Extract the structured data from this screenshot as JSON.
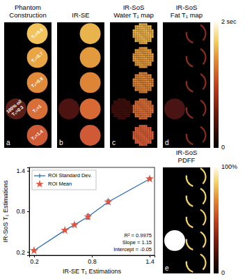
{
  "figure": {
    "panels": [
      {
        "letter": "a",
        "title": [
          "Phantom",
          "Construction"
        ],
        "vial_colors": [
          "#f2c35a",
          "#e9a444",
          "#e18a3a",
          "#d86e38",
          "#d05c36",
          "#5c1f18"
        ],
        "vial_labels": [
          "T₁=0.6",
          "T₁=0.7",
          "T₁=0.8",
          "T₁=1",
          "T₁=1.4"
        ],
        "oil_label": [
          "100% oil",
          "T₁=0.3"
        ]
      },
      {
        "letter": "b",
        "title": [
          "IR-SE"
        ],
        "vial_colors": [
          "#e9b44c",
          "#e39a3c",
          "#de8436",
          "#d76a34",
          "#cf5a35",
          "#4d1310"
        ]
      },
      {
        "letter": "c",
        "title": [
          "IR-SoS",
          "Water T₁ map"
        ],
        "vial_colors": [
          "#e6ae4a",
          "#e0973c",
          "#da8237",
          "#d46a35",
          "#cc5934",
          "#3a0e0b"
        ]
      },
      {
        "letter": "d",
        "title": [
          "IR-SoS",
          "Fat T₁ map"
        ],
        "vial_colors": [
          "#8a2c1a",
          "#8a2c1a",
          "#8a2c1a",
          "#8a2c1a",
          "#8a2c1a",
          "#4a1414"
        ]
      },
      {
        "letter": "e",
        "title": [
          "IR-SoS",
          "PDFF"
        ],
        "vial_colors": [
          "#f2d36a",
          "#f2d36a",
          "#f2d36a",
          "#f2d36a",
          "#f2d36a",
          "#ffffff"
        ]
      }
    ],
    "t1_colorbar": {
      "range": [
        0,
        2
      ],
      "ticks": [
        {
          "value": 2,
          "label": "2 sec"
        },
        0
      ]
    },
    "pdff_colorbar": {
      "range": [
        0,
        100
      ],
      "ticks": [
        {
          "value": 100,
          "label": "100%"
        },
        0
      ]
    }
  },
  "chart_data": {
    "type": "line",
    "x_label": "IR-SE T₁ Estimations",
    "y_label": "IR-SoS T₁ Estimations",
    "x": [
      0.2,
      0.52,
      0.62,
      0.76,
      0.97,
      1.4
    ],
    "series": [
      {
        "name": "ROI Standard Dev.",
        "color": "#2b6cb0",
        "line_style": "solid",
        "values": [
          0.22,
          0.52,
          0.6,
          0.72,
          0.94,
          1.28
        ],
        "errors": [
          0.01,
          0.015,
          0.02,
          0.035,
          0.03,
          0.02
        ]
      },
      {
        "name": "ROI Mean",
        "color": "#e5533d",
        "type": "scatter",
        "marker": "star",
        "values": [
          0.22,
          0.52,
          0.6,
          0.72,
          0.94,
          1.28
        ]
      }
    ],
    "xlim": [
      0.15,
      1.45
    ],
    "ylim": [
      0.15,
      1.45
    ],
    "xticks": [
      0.2,
      0.8,
      1.4
    ],
    "yticks": [
      0.2,
      0.8,
      1.4
    ],
    "grid": false,
    "legend": "upper left",
    "annotations": [
      "R² = 0.9975",
      "Slope = 1.15",
      "Intercept = -0.05"
    ]
  }
}
